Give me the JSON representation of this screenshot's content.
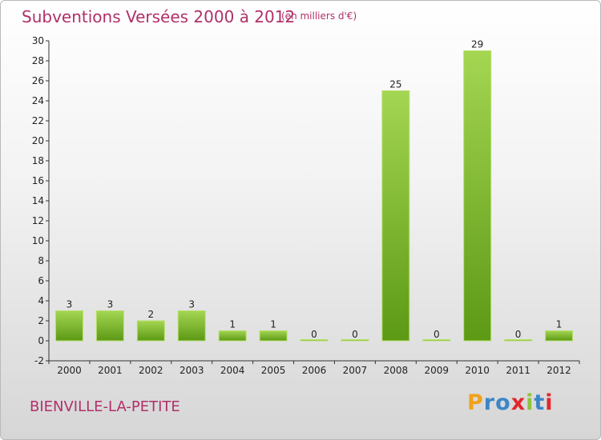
{
  "title": "Subventions Versées 2000 à 2012",
  "subtitle": "(en milliers d'€)",
  "place": "BIENVILLE-LA-PETITE",
  "logo": {
    "letters": [
      "P",
      "r",
      "o",
      "x",
      "i",
      "t",
      "i"
    ],
    "colors": [
      "#f0a21a",
      "#3b86c8",
      "#3b86c8",
      "#e3262b",
      "#8cc53f",
      "#3b86c8",
      "#e3262b"
    ]
  },
  "colors": {
    "bar_light": "#9ed24c",
    "bar_dark": "#5d9a16",
    "text_accent": "#b0306a"
  },
  "chart_data": {
    "type": "bar",
    "categories": [
      "2000",
      "2001",
      "2002",
      "2003",
      "2004",
      "2005",
      "2006",
      "2007",
      "2008",
      "2009",
      "2010",
      "2011",
      "2012"
    ],
    "values": [
      3,
      3,
      2,
      3,
      1,
      1,
      0,
      0,
      25,
      0,
      29,
      0,
      1
    ],
    "data_labels": [
      "3",
      "3",
      "2",
      "3",
      "1",
      "1",
      "0",
      "0",
      "25",
      "0",
      "29",
      "0",
      "1"
    ],
    "title": "Subventions Versées 2000 à 2012",
    "xlabel": "",
    "ylabel": "",
    "ylim": [
      -2,
      30
    ],
    "yticks": [
      -2,
      0,
      2,
      4,
      6,
      8,
      10,
      12,
      14,
      16,
      18,
      20,
      22,
      24,
      26,
      28,
      30
    ],
    "grid": false,
    "legend": "none"
  }
}
